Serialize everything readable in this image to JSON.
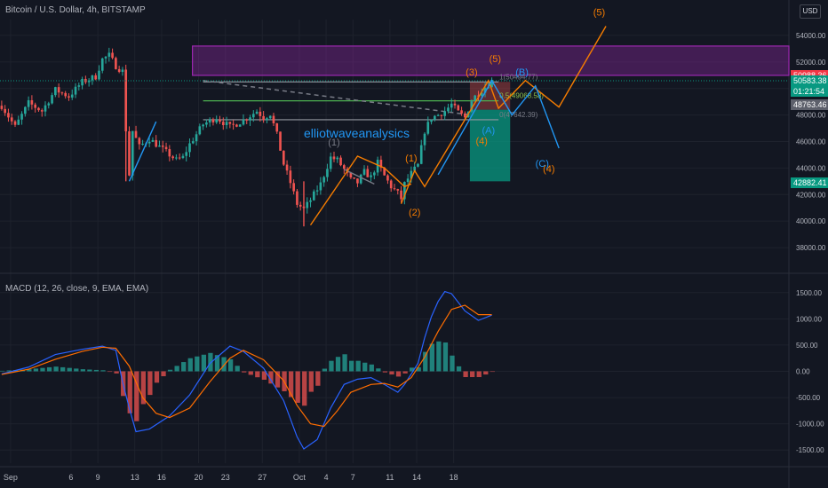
{
  "header": {
    "title": "Bitcoin / U.S. Dollar, 4h, BITSTAMP",
    "currency_button": "USD",
    "indicator": "MACD (12, 26, close, 9, EMA, EMA)"
  },
  "colors": {
    "background": "#131722",
    "grid": "#1e222d",
    "axis_text": "#b2b5be",
    "up": "#26a69a",
    "down": "#ef5350",
    "wave_orange": "#f57c00",
    "wave_blue": "#2196f3",
    "zone_purple": "#9c27b0",
    "macd_line": "#2962ff",
    "signal_line": "#ff6d00"
  },
  "price_tags": [
    {
      "label": "50988.36",
      "value": 50988.36,
      "color": "#f23645"
    },
    {
      "label": "50583.38",
      "sub": "01:21:54",
      "value": 50583.38,
      "color": "#089981"
    },
    {
      "label": "48763.46",
      "value": 48763.46,
      "color": "#5d606b"
    },
    {
      "label": "42882.41",
      "value": 42882.41,
      "color": "#089981"
    }
  ],
  "annotations": {
    "watermark": "elliotwaveanalysics",
    "fib": [
      {
        "label": "1(50494.77)",
        "value": 50494.77
      },
      {
        "label": "0.5(49068.58)",
        "value": 49068.58
      },
      {
        "label": "0(47642.39)",
        "value": 47642.39
      }
    ],
    "orange_waves": [
      "(1)",
      "(2)",
      "(3)",
      "(4)",
      "(5)",
      "(4)",
      "(5)"
    ],
    "blue_waves": [
      "(A)",
      "(B)",
      "(C)"
    ],
    "grey_wave": "(1)"
  },
  "chart_data": [
    {
      "type": "candlestick",
      "title": "Bitcoin / U.S. Dollar, 4h, BITSTAMP",
      "x_ticks": [
        "Sep",
        "6",
        "9",
        "13",
        "16",
        "20",
        "23",
        "27",
        "Oct",
        "4",
        "7",
        "11",
        "14",
        "18"
      ],
      "y_ticks": [
        "54000.00",
        "52000.00",
        "50000.00",
        "48000.00",
        "46000.00",
        "44000.00",
        "42000.00",
        "40000.00",
        "38000.00"
      ],
      "ylim": [
        36600,
        55200
      ],
      "close_path": [
        [
          0,
          48700
        ],
        [
          4,
          47100
        ],
        [
          8,
          48900
        ],
        [
          12,
          48300
        ],
        [
          16,
          49900
        ],
        [
          20,
          49400
        ],
        [
          24,
          50500
        ],
        [
          28,
          50900
        ],
        [
          30,
          52200
        ],
        [
          32,
          52500
        ],
        [
          34,
          51700
        ],
        [
          36,
          51300
        ],
        [
          37,
          46900
        ],
        [
          38,
          43500
        ],
        [
          39,
          46800
        ],
        [
          41,
          45600
        ],
        [
          44,
          46200
        ],
        [
          48,
          45400
        ],
        [
          52,
          44600
        ],
        [
          54,
          44800
        ],
        [
          56,
          45800
        ],
        [
          60,
          47300
        ],
        [
          64,
          47800
        ],
        [
          68,
          47100
        ],
        [
          72,
          47600
        ],
        [
          76,
          48300
        ],
        [
          78,
          47800
        ],
        [
          80,
          48100
        ],
        [
          82,
          46500
        ],
        [
          84,
          44300
        ],
        [
          86,
          42900
        ],
        [
          88,
          41300
        ],
        [
          90,
          40900
        ],
        [
          92,
          41600
        ],
        [
          95,
          42800
        ],
        [
          98,
          44800
        ],
        [
          100,
          44600
        ],
        [
          102,
          43900
        ],
        [
          104,
          43100
        ],
        [
          106,
          42900
        ],
        [
          108,
          43700
        ],
        [
          110,
          43300
        ],
        [
          112,
          44400
        ],
        [
          114,
          43400
        ],
        [
          116,
          42600
        ],
        [
          118,
          42100
        ],
        [
          119,
          41700
        ],
        [
          120,
          42800
        ],
        [
          122,
          43600
        ],
        [
          124,
          44200
        ],
        [
          126,
          46800
        ],
        [
          128,
          47800
        ],
        [
          130,
          48000
        ],
        [
          132,
          48300
        ],
        [
          134,
          48800
        ],
        [
          136,
          48200
        ],
        [
          138,
          47800
        ],
        [
          140,
          49100
        ],
        [
          142,
          49700
        ],
        [
          144,
          50100
        ],
        [
          146,
          50583
        ]
      ],
      "zones": [
        {
          "name": "purple zone",
          "from": 50988,
          "to": 53200
        },
        {
          "name": "green zone",
          "from": 43000,
          "to": 48400
        },
        {
          "name": "red zone",
          "from": 48400,
          "to": 50500
        }
      ]
    },
    {
      "type": "line+histogram",
      "title": "MACD (12, 26, close, 9, EMA, EMA)",
      "y_ticks": [
        "1500.00",
        "1000.00",
        "500.00",
        "0.00",
        "-500.00",
        "-1000.00",
        "-1500.00"
      ],
      "ylim": [
        -1750,
        1750
      ],
      "macd": [
        [
          0,
          -50
        ],
        [
          8,
          80
        ],
        [
          16,
          320
        ],
        [
          24,
          420
        ],
        [
          30,
          480
        ],
        [
          34,
          400
        ],
        [
          36,
          -200
        ],
        [
          38,
          -700
        ],
        [
          40,
          -1150
        ],
        [
          44,
          -1100
        ],
        [
          50,
          -850
        ],
        [
          56,
          -450
        ],
        [
          62,
          150
        ],
        [
          68,
          480
        ],
        [
          72,
          380
        ],
        [
          78,
          60
        ],
        [
          84,
          -560
        ],
        [
          88,
          -1250
        ],
        [
          90,
          -1480
        ],
        [
          94,
          -1300
        ],
        [
          98,
          -700
        ],
        [
          102,
          -250
        ],
        [
          106,
          -150
        ],
        [
          110,
          -120
        ],
        [
          114,
          -250
        ],
        [
          118,
          -400
        ],
        [
          120,
          -250
        ],
        [
          124,
          150
        ],
        [
          126,
          640
        ],
        [
          128,
          1040
        ],
        [
          130,
          1330
        ],
        [
          132,
          1520
        ],
        [
          134,
          1480
        ],
        [
          138,
          1150
        ],
        [
          142,
          970
        ],
        [
          146,
          1070
        ]
      ],
      "signal": [
        [
          0,
          -60
        ],
        [
          8,
          40
        ],
        [
          16,
          230
        ],
        [
          24,
          380
        ],
        [
          30,
          460
        ],
        [
          34,
          440
        ],
        [
          38,
          100
        ],
        [
          42,
          -500
        ],
        [
          46,
          -800
        ],
        [
          50,
          -880
        ],
        [
          56,
          -700
        ],
        [
          62,
          -200
        ],
        [
          68,
          250
        ],
        [
          72,
          400
        ],
        [
          78,
          220
        ],
        [
          84,
          -180
        ],
        [
          88,
          -650
        ],
        [
          92,
          -1000
        ],
        [
          96,
          -1050
        ],
        [
          100,
          -750
        ],
        [
          104,
          -400
        ],
        [
          110,
          -250
        ],
        [
          114,
          -230
        ],
        [
          118,
          -300
        ],
        [
          122,
          -120
        ],
        [
          126,
          270
        ],
        [
          130,
          760
        ],
        [
          134,
          1180
        ],
        [
          138,
          1260
        ],
        [
          142,
          1080
        ],
        [
          146,
          1080
        ]
      ]
    }
  ]
}
